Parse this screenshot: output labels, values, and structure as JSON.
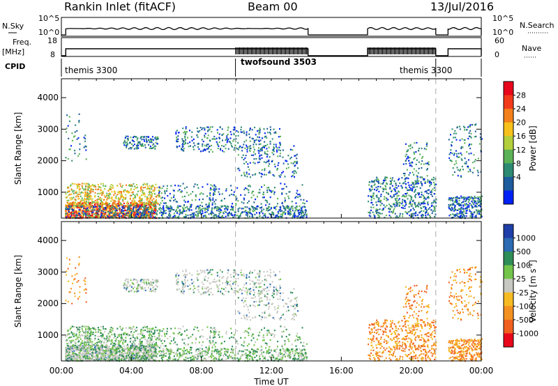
{
  "header": {
    "station": "Rankin Inlet (fitACF)",
    "beam": "Beam 00",
    "date": "13/Jul/2016"
  },
  "left_labels": {
    "nsky": "N.Sky",
    "freq": "Freq.",
    "mhz": "[MHz]",
    "cpid": "CPID"
  },
  "right_labels": {
    "nsearch": "N.Search",
    "nave": "Nave"
  },
  "time_axis": {
    "label": "Time UT",
    "ticks": [
      "00:00",
      "04:00",
      "08:00",
      "12:00",
      "16:00",
      "20:00",
      "00:00"
    ]
  },
  "chart_data": [
    {
      "type": "line",
      "name": "noise",
      "x_range_hours": [
        0,
        24
      ],
      "left_axis": {
        "label": "N.Sky",
        "ticks": [
          "10^5",
          "10^0"
        ],
        "scale": "log"
      },
      "right_axis": {
        "label": "N.Search",
        "ticks": [
          "10^5",
          "10^0"
        ],
        "scale": "log"
      },
      "data_segments_hours": [
        [
          0.25,
          14.1
        ],
        [
          17.5,
          21.4
        ],
        [
          22.1,
          24.0
        ]
      ]
    },
    {
      "type": "line",
      "name": "frequency",
      "left_axis": {
        "label": "Freq. [MHz]",
        "ticks": [
          "18",
          "8"
        ],
        "ylim": [
          8,
          18
        ]
      },
      "right_axis": {
        "label": "Nave",
        "ticks": [
          "60",
          "0"
        ],
        "ylim": [
          0,
          60
        ]
      },
      "freq_level_mhz": 12,
      "data_segments_hours": [
        [
          0.25,
          14.1
        ],
        [
          17.5,
          21.4
        ],
        [
          22.1,
          24.0
        ]
      ]
    },
    {
      "type": "table",
      "name": "cpid",
      "programs": [
        {
          "label": "themis 3300",
          "start": 0.0,
          "end": 9.95
        },
        {
          "label": "twofsound 3503",
          "start": 9.95,
          "end": 14.1
        },
        {
          "label": "themis 3300",
          "start": 17.5,
          "end": 21.4
        }
      ],
      "boundaries_hours": [
        9.95,
        21.4
      ]
    },
    {
      "type": "heatmap",
      "name": "power",
      "ylabel": "Slant Range [km]",
      "ylim": [
        180,
        4600
      ],
      "yticks": [
        1000,
        2000,
        3000,
        4000
      ],
      "colorbar": {
        "label": "Power [dB]",
        "ticks": [
          "28",
          "24",
          "20",
          "16",
          "12",
          "8",
          "4"
        ],
        "colors": [
          "#e8071a",
          "#f23a1a",
          "#f3801b",
          "#f6c11a",
          "#b3cf3c",
          "#5bb256",
          "#2c8a72",
          "#1d5c9c",
          "#0021f5"
        ]
      }
    },
    {
      "type": "heatmap",
      "name": "velocity",
      "ylabel": "Slant Range [km]",
      "ylim": [
        180,
        4600
      ],
      "yticks": [
        1000,
        2000,
        3000,
        4000
      ],
      "colorbar": {
        "label": "Velocity [m s",
        "label_sup": "-1",
        "label_end": "]",
        "ticks": [
          "1000",
          "500",
          "100",
          "25",
          "-25",
          "-100",
          "-500",
          "-1000"
        ],
        "colors": [
          "#1e3fa8",
          "#2c6ab3",
          "#2f8d57",
          "#72c44a",
          "#c8c8c2",
          "#f6bb22",
          "#f39120",
          "#f15f1f",
          "#e8071a"
        ]
      }
    }
  ],
  "colors": {
    "axis": "#000000",
    "dashed_boundary": "#aaaaaa"
  }
}
